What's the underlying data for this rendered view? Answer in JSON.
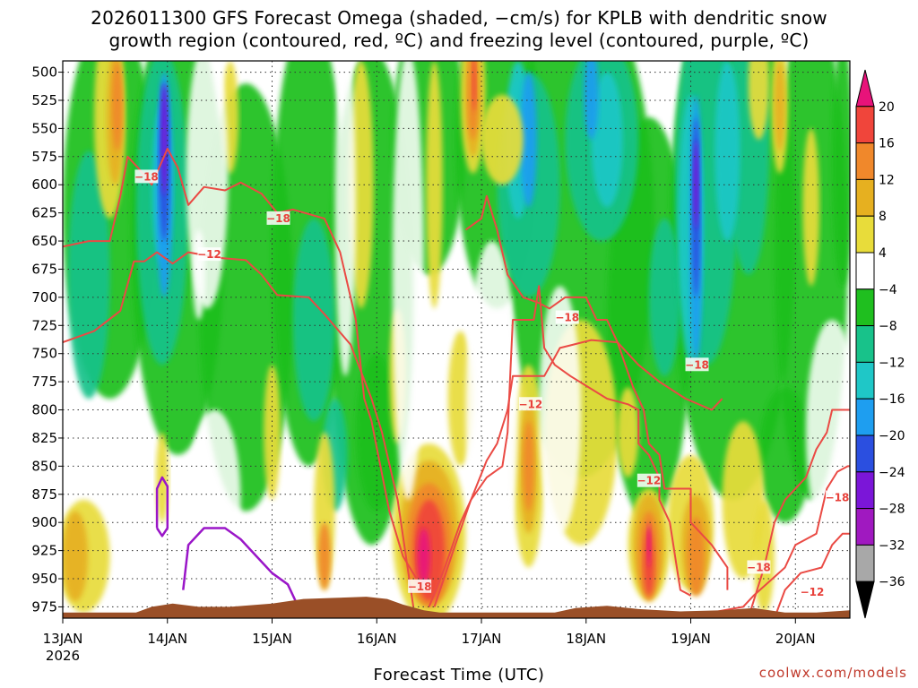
{
  "title_line1": "2026011300 GFS Forecast Omega (shaded, −cm/s) for KPLB with dendritic snow",
  "title_line2": "growth region (contoured, red, ºC) and freezing level (contoured, purple, ºC)",
  "credit": "coolwx.com/models",
  "chart_data": {
    "type": "heatmap",
    "xlabel": "Forecast Time (UTC)",
    "ylabel": "",
    "x_ticks": [
      "13JAN",
      "14JAN",
      "15JAN",
      "16JAN",
      "17JAN",
      "18JAN",
      "19JAN",
      "20JAN"
    ],
    "x_year": "2026",
    "y_ticks": [
      500,
      525,
      550,
      575,
      600,
      625,
      650,
      675,
      700,
      725,
      750,
      775,
      800,
      825,
      850,
      875,
      900,
      925,
      950,
      975
    ],
    "grid": true,
    "colorbar": {
      "labels": [
        "20",
        "16",
        "12",
        "8",
        "4",
        "−4",
        "−8",
        "−12",
        "−16",
        "−20",
        "−24",
        "−28",
        "−32",
        "−36"
      ],
      "colors": [
        "#e8137a",
        "#f0453b",
        "#f0882b",
        "#e6b020",
        "#e8dc3a",
        "#ffffff",
        "#1fbf1f",
        "#18c28a",
        "#1fc7c7",
        "#1e9ef0",
        "#2b4fe0",
        "#7b16d8",
        "#a019c0",
        "#a8a8a8",
        "#000000"
      ]
    },
    "contour_labels": [
      {
        "text": "−18",
        "x": 0.8,
        "y": 593
      },
      {
        "text": "−12",
        "x": 1.4,
        "y": 662
      },
      {
        "text": "−18",
        "x": 2.06,
        "y": 630
      },
      {
        "text": "−18",
        "x": 4.82,
        "y": 718
      },
      {
        "text": "−12",
        "x": 4.47,
        "y": 795
      },
      {
        "text": "−18",
        "x": 6.06,
        "y": 760
      },
      {
        "text": "−12",
        "x": 5.6,
        "y": 863
      },
      {
        "text": "−18",
        "x": 6.65,
        "y": 940
      },
      {
        "text": "−18",
        "x": 7.4,
        "y": 878
      },
      {
        "text": "−12",
        "x": 7.16,
        "y": 962
      },
      {
        "text": "−18",
        "x": 3.41,
        "y": 957
      }
    ]
  }
}
